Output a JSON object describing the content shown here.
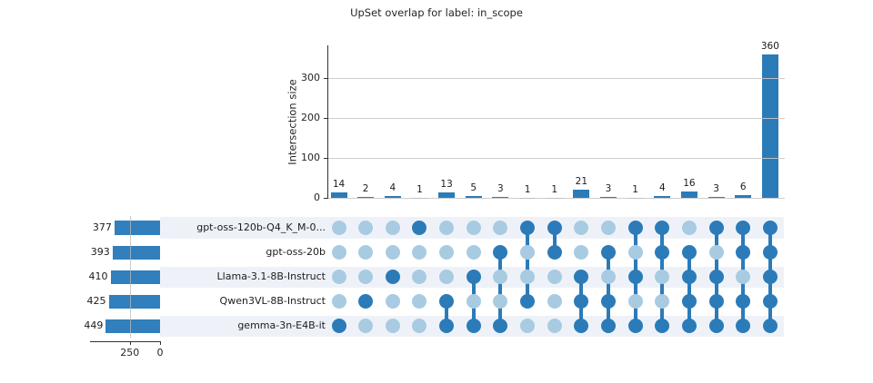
{
  "title": "UpSet overlap for label: in_scope",
  "colors": {
    "bar_blue": "#2b7bb9",
    "dot_active": "#2b7bb9",
    "dot_inactive": "#a8cbe2",
    "row_stripe": "#eef2f8",
    "gridline": "#c9c9c9",
    "axis": "#333333"
  },
  "chart_data": {
    "type": "upset",
    "title": "UpSet overlap for label: in_scope",
    "intersection_axis": {
      "label": "Intersection size",
      "ticks": [
        0,
        100,
        200,
        300
      ],
      "max": 382
    },
    "set_size_axis": {
      "ticks": [
        250,
        0
      ]
    },
    "sets": [
      {
        "name": "gpt-oss-120b-Q4_K_M-0...",
        "size": 377
      },
      {
        "name": "gpt-oss-20b",
        "size": 393
      },
      {
        "name": "Llama-3.1-8B-Instruct",
        "size": 410
      },
      {
        "name": "Qwen3VL-8B-Instruct",
        "size": 425
      },
      {
        "name": "gemma-3n-E4B-it",
        "size": 449
      }
    ],
    "intersections": [
      {
        "value": 14,
        "members": [
          4
        ]
      },
      {
        "value": 2,
        "members": [
          3
        ]
      },
      {
        "value": 4,
        "members": [
          2
        ]
      },
      {
        "value": 1,
        "members": [
          0
        ]
      },
      {
        "value": 13,
        "members": [
          3,
          4
        ]
      },
      {
        "value": 5,
        "members": [
          2,
          4
        ]
      },
      {
        "value": 3,
        "members": [
          1,
          4
        ]
      },
      {
        "value": 1,
        "members": [
          0,
          3
        ]
      },
      {
        "value": 1,
        "members": [
          0,
          1
        ]
      },
      {
        "value": 21,
        "members": [
          2,
          3,
          4
        ]
      },
      {
        "value": 3,
        "members": [
          1,
          3,
          4
        ]
      },
      {
        "value": 1,
        "members": [
          0,
          2,
          4
        ]
      },
      {
        "value": 4,
        "members": [
          0,
          1,
          4
        ]
      },
      {
        "value": 16,
        "members": [
          1,
          2,
          3,
          4
        ]
      },
      {
        "value": 3,
        "members": [
          0,
          2,
          3,
          4
        ]
      },
      {
        "value": 6,
        "members": [
          0,
          1,
          3,
          4
        ]
      },
      {
        "value": 360,
        "members": [
          0,
          1,
          2,
          3,
          4
        ]
      }
    ],
    "layout_hints": {
      "grid": "horizontal light gray at 100/200/300",
      "legend": "none",
      "matrix_rows_striped": "odd rows shaded"
    }
  }
}
